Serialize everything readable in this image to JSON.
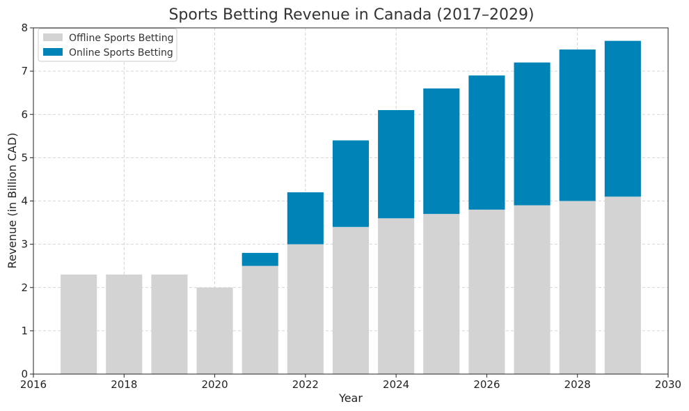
{
  "chart_data": {
    "type": "bar",
    "stacked": true,
    "title": "Sports Betting Revenue in Canada (2017–2029)",
    "xlabel": "Year",
    "ylabel": "Revenue (in Billion CAD)",
    "x": [
      2017,
      2018,
      2019,
      2020,
      2021,
      2022,
      2023,
      2024,
      2025,
      2026,
      2027,
      2028,
      2029
    ],
    "series": [
      {
        "name": "Offline Sports Betting",
        "color": "#d3d3d3",
        "values": [
          2.3,
          2.3,
          2.3,
          2.0,
          2.5,
          3.0,
          3.4,
          3.6,
          3.7,
          3.8,
          3.9,
          4.0,
          4.1
        ]
      },
      {
        "name": "Online Sports Betting",
        "color": "#0084b8",
        "values": [
          0,
          0,
          0,
          0,
          0.3,
          1.2,
          2.0,
          2.5,
          2.9,
          3.1,
          3.3,
          3.5,
          3.6
        ]
      }
    ],
    "xlim": [
      2016,
      2030
    ],
    "ylim": [
      0,
      8
    ],
    "xticks": [
      "2016",
      "2018",
      "2020",
      "2022",
      "2024",
      "2026",
      "2028",
      "2030"
    ],
    "yticks": [
      "0",
      "1",
      "2",
      "3",
      "4",
      "5",
      "6",
      "7",
      "8"
    ],
    "grid": true,
    "legend_position": "top-left"
  }
}
